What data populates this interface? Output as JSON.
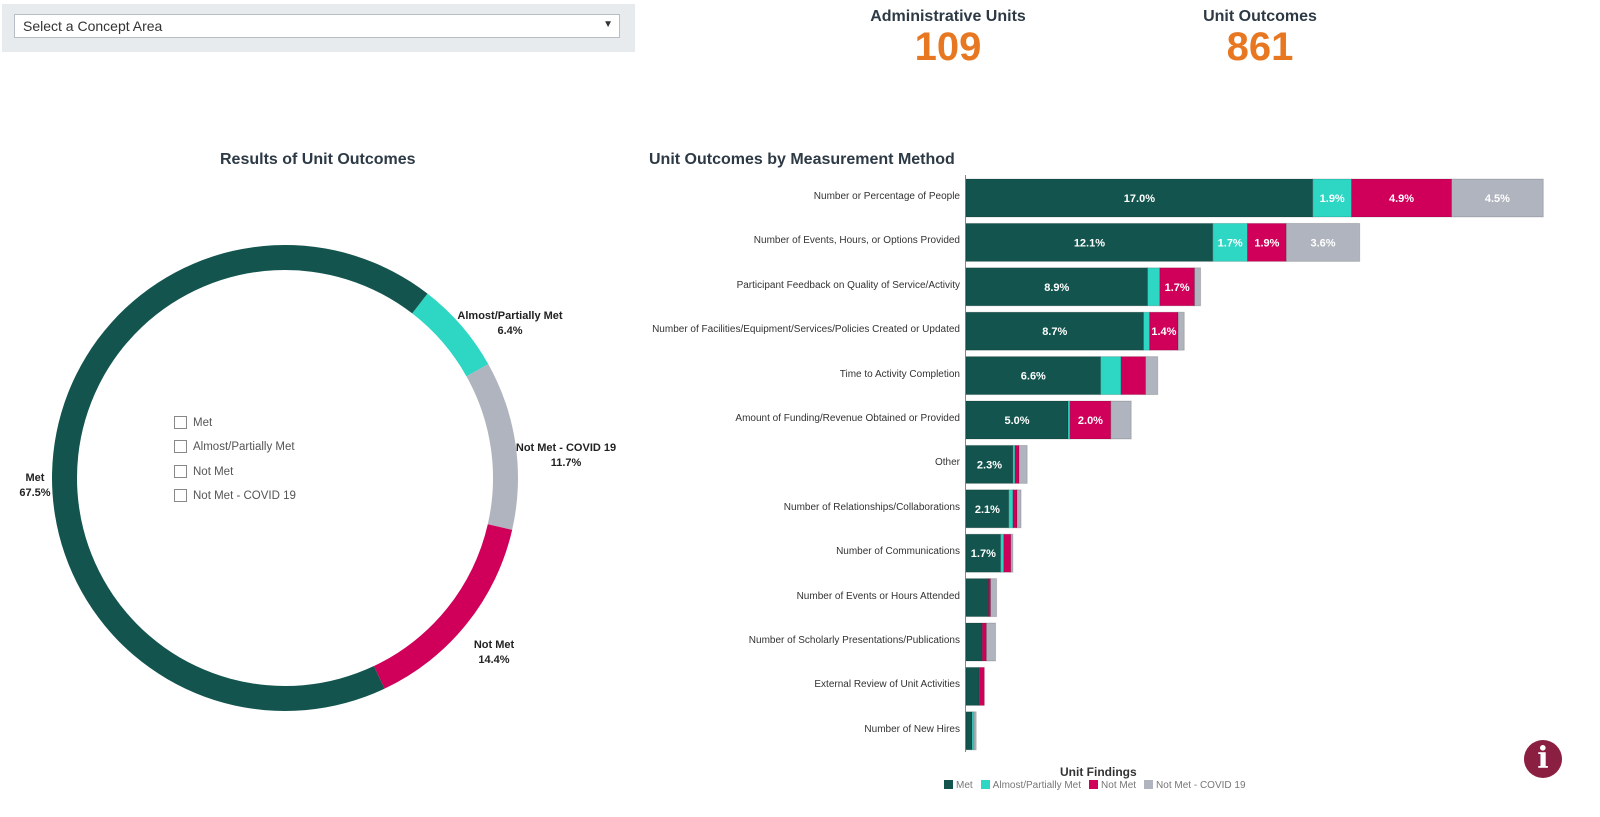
{
  "filter": {
    "placeholder": "Select a Concept Area",
    "arrow_icon": "triangle-down"
  },
  "kpis": [
    {
      "label": "Administrative Units",
      "value": "109"
    },
    {
      "label": "Unit Outcomes",
      "value": "861"
    }
  ],
  "colors": {
    "met": "#13554e",
    "almost": "#2ed6c4",
    "not_met": "#d0005a",
    "covid": "#b0b4be",
    "kpi": "#e87722",
    "info": "#8b1f41"
  },
  "donut": {
    "title": "Results of Unit Outcomes",
    "legend": [
      "Met",
      "Almost/Partially Met",
      "Not Met",
      "Not Met - COVID 19"
    ],
    "labels": {
      "met": {
        "name": "Met",
        "pct": "67.5%"
      },
      "almost": {
        "name": "Almost/Partially Met",
        "pct": "6.4%"
      },
      "covid": {
        "name": "Not Met - COVID 19",
        "pct": "11.7%"
      },
      "not_met": {
        "name": "Not Met",
        "pct": "14.4%"
      }
    }
  },
  "chart_data": [
    {
      "type": "pie",
      "title": "Results of Unit Outcomes",
      "categories": [
        "Met",
        "Almost/Partially Met",
        "Not Met",
        "Not Met - COVID 19"
      ],
      "values": [
        67.5,
        6.4,
        14.4,
        11.7
      ],
      "hole": true,
      "legend": "center"
    },
    {
      "type": "bar",
      "orientation": "horizontal",
      "stacked": true,
      "title": "Unit Outcomes by Measurement Method",
      "legend_title": "Unit Findings",
      "legend": "bottom",
      "categories": [
        "Number or Percentage of People",
        "Number of Events, Hours, or Options Provided",
        "Participant Feedback on Quality of Service/Activity",
        "Number of Facilities/Equipment/Services/Policies Created or Updated",
        "Time to Activity Completion",
        "Amount of Funding/Revenue Obtained or Provided",
        "Other",
        "Number of Relationships/Collaborations",
        "Number of Communications",
        "Number of Events or Hours Attended",
        "Number of Scholarly Presentations/Publications",
        "External Review of Unit Activities",
        "Number of New Hires"
      ],
      "series": [
        {
          "name": "Met",
          "values": [
            17.0,
            12.1,
            8.9,
            8.7,
            6.6,
            5.0,
            2.3,
            2.1,
            1.7,
            1.1,
            0.8,
            0.65,
            0.3
          ],
          "labels": [
            "17.0%",
            "12.1%",
            "8.9%",
            "8.7%",
            "6.6%",
            "5.0%",
            "2.3%",
            "2.1%",
            "1.7%",
            "",
            "",
            "",
            ""
          ]
        },
        {
          "name": "Almost/Partially Met",
          "values": [
            1.9,
            1.7,
            0.6,
            0.3,
            1.0,
            0.1,
            0.1,
            0.2,
            0.15,
            0,
            0,
            0,
            0.1
          ],
          "labels": [
            "1.9%",
            "1.7%",
            "",
            "",
            "",
            "",
            "",
            "",
            "",
            "",
            "",
            "",
            ""
          ]
        },
        {
          "name": "Not Met",
          "values": [
            4.9,
            1.9,
            1.7,
            1.4,
            1.2,
            2.0,
            0.2,
            0.2,
            0.35,
            0.1,
            0.2,
            0.25,
            0
          ],
          "labels": [
            "4.9%",
            "1.9%",
            "1.7%",
            "1.4%",
            "",
            "2.0%",
            "",
            "",
            "",
            "",
            "",
            "",
            ""
          ]
        },
        {
          "name": "Not Met - COVID 19",
          "values": [
            4.5,
            3.6,
            0.3,
            0.3,
            0.6,
            1.0,
            0.4,
            0.2,
            0.1,
            0.3,
            0.45,
            0,
            0.1
          ],
          "labels": [
            "4.5%",
            "3.6%",
            "",
            "",
            "",
            "",
            "",
            "",
            "",
            "",
            "",
            "",
            ""
          ]
        }
      ]
    }
  ]
}
